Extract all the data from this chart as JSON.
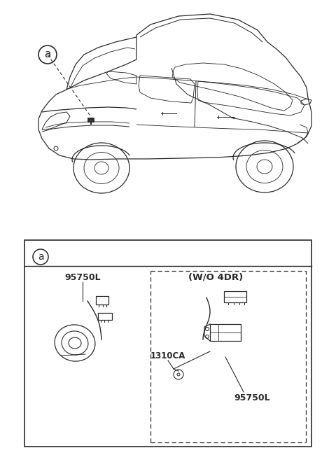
{
  "bg_color": "#ffffff",
  "line_color": "#2a2a2a",
  "part_label_1": "95750L",
  "part_label_2": "95750L",
  "part_label_3": "1310CA",
  "wo_label": "(W/O 4DR)",
  "label_a": "a"
}
